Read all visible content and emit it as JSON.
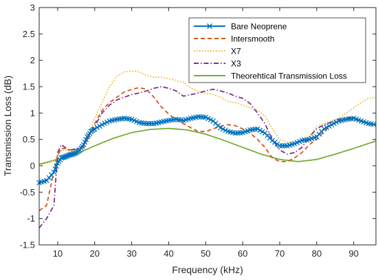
{
  "chart_data": {
    "type": "line",
    "title": "",
    "xlabel": "Frequency (kHz)",
    "ylabel": "Transmission Loss (dB)",
    "xlim": [
      5,
      96
    ],
    "ylim": [
      -1.5,
      3
    ],
    "xticks": [
      10,
      20,
      30,
      40,
      50,
      60,
      70,
      80,
      90
    ],
    "xtick_labels": [
      "10",
      "20",
      "30",
      "40",
      "50",
      "60",
      "70",
      "80",
      "90"
    ],
    "yticks": [
      -1.5,
      -1,
      -0.5,
      0,
      0.5,
      1,
      1.5,
      2,
      2.5,
      3
    ],
    "ytick_labels": [
      "-1.5",
      "-1",
      "-0.5",
      "0",
      "0.5",
      "1",
      "1.5",
      "2",
      "2.5",
      "3"
    ],
    "grid": false,
    "legend_position": "top-right",
    "series": [
      {
        "name": "Bare Neoprene",
        "color": "#0072BD",
        "style": "solid-x-markers",
        "x": [
          5,
          7,
          9,
          10,
          11,
          12,
          13,
          14,
          15,
          16,
          17,
          18,
          19,
          20,
          22,
          24,
          26,
          28,
          30,
          32,
          34,
          36,
          38,
          40,
          42,
          44,
          46,
          48,
          50,
          52,
          54,
          56,
          58,
          60,
          62,
          64,
          66,
          68,
          70,
          72,
          74,
          76,
          78,
          80,
          82,
          84,
          86,
          88,
          90,
          92,
          94,
          96
        ],
        "y": [
          -0.32,
          -0.28,
          -0.12,
          0.05,
          0.15,
          0.17,
          0.2,
          0.22,
          0.25,
          0.3,
          0.4,
          0.55,
          0.65,
          0.7,
          0.78,
          0.85,
          0.88,
          0.9,
          0.88,
          0.82,
          0.8,
          0.8,
          0.83,
          0.86,
          0.88,
          0.86,
          0.9,
          0.93,
          0.92,
          0.85,
          0.72,
          0.65,
          0.62,
          0.63,
          0.68,
          0.7,
          0.62,
          0.48,
          0.38,
          0.38,
          0.42,
          0.48,
          0.5,
          0.55,
          0.7,
          0.78,
          0.85,
          0.88,
          0.9,
          0.85,
          0.8,
          0.78
        ]
      },
      {
        "name": "Intersmooth",
        "color": "#D95319",
        "style": "dashed",
        "x": [
          5,
          7,
          9,
          10,
          11,
          12,
          13,
          15,
          17,
          18,
          20,
          22,
          24,
          26,
          28,
          30,
          32,
          34,
          36,
          38,
          40,
          42,
          44,
          46,
          48,
          50,
          52,
          54,
          56,
          58,
          60,
          62,
          64,
          66,
          68,
          70,
          72,
          74,
          76,
          78,
          80,
          82,
          84,
          86,
          88,
          90,
          92,
          94,
          96
        ],
        "y": [
          -0.85,
          -0.75,
          -0.1,
          0.2,
          0.33,
          0.33,
          0.3,
          0.3,
          0.35,
          0.5,
          0.8,
          1.05,
          1.2,
          1.3,
          1.4,
          1.45,
          1.48,
          1.45,
          1.3,
          1.12,
          0.98,
          0.88,
          0.8,
          0.72,
          0.65,
          0.65,
          0.7,
          0.75,
          0.78,
          0.76,
          0.7,
          0.62,
          0.5,
          0.35,
          0.15,
          0.08,
          0.08,
          0.15,
          0.25,
          0.4,
          0.5,
          0.65,
          0.78,
          0.85,
          0.88,
          0.88,
          0.85,
          0.8,
          0.78
        ]
      },
      {
        "name": "X7",
        "color": "#EDB120",
        "style": "dotted",
        "x": [
          5,
          7,
          9,
          10,
          11,
          12,
          13,
          15,
          17,
          18,
          20,
          22,
          24,
          26,
          28,
          30,
          32,
          34,
          36,
          38,
          40,
          42,
          44,
          46,
          48,
          50,
          52,
          54,
          56,
          58,
          60,
          62,
          64,
          66,
          68,
          70,
          72,
          74,
          76,
          78,
          80,
          82,
          84,
          86,
          88,
          90,
          92,
          94,
          96
        ],
        "y": [
          0.0,
          0.05,
          0.1,
          0.2,
          0.3,
          0.3,
          0.28,
          0.3,
          0.38,
          0.55,
          0.9,
          1.2,
          1.5,
          1.7,
          1.78,
          1.8,
          1.78,
          1.72,
          1.68,
          1.68,
          1.65,
          1.62,
          1.58,
          1.48,
          1.4,
          1.38,
          1.35,
          1.3,
          1.22,
          1.2,
          1.15,
          1.1,
          1.05,
          0.95,
          0.7,
          0.5,
          0.45,
          0.45,
          0.48,
          0.55,
          0.75,
          0.8,
          0.85,
          0.9,
          1.0,
          1.1,
          1.2,
          1.28,
          1.3
        ]
      },
      {
        "name": "X3",
        "color": "#7E2F8E",
        "style": "dash-dot",
        "x": [
          5,
          7,
          9,
          10,
          11,
          12,
          13,
          15,
          17,
          18,
          20,
          22,
          24,
          26,
          28,
          30,
          32,
          34,
          36,
          38,
          40,
          42,
          44,
          46,
          48,
          50,
          52,
          54,
          56,
          58,
          60,
          62,
          64,
          66,
          68,
          70,
          72,
          74,
          76,
          78,
          80,
          82,
          84,
          86,
          88,
          90,
          92,
          94,
          96
        ],
        "y": [
          -1.18,
          -1.0,
          -0.75,
          0.25,
          0.4,
          0.35,
          0.3,
          0.32,
          0.38,
          0.5,
          0.75,
          1.0,
          1.15,
          1.25,
          1.3,
          1.35,
          1.38,
          1.42,
          1.47,
          1.5,
          1.47,
          1.42,
          1.32,
          1.35,
          1.38,
          1.42,
          1.45,
          1.42,
          1.38,
          1.32,
          1.28,
          1.18,
          1.0,
          0.8,
          0.5,
          0.3,
          0.22,
          0.25,
          0.35,
          0.55,
          0.7,
          0.78,
          0.83,
          0.88,
          0.92,
          0.9,
          0.85,
          0.8,
          0.78
        ]
      },
      {
        "name": "Theorehtical Transmission Loss",
        "color": "#77AC30",
        "style": "solid",
        "x": [
          5,
          10,
          15,
          20,
          25,
          30,
          35,
          40,
          45,
          50,
          55,
          60,
          65,
          70,
          75,
          80,
          85,
          90,
          96
        ],
        "y": [
          0.03,
          0.12,
          0.22,
          0.38,
          0.52,
          0.63,
          0.69,
          0.71,
          0.68,
          0.6,
          0.48,
          0.35,
          0.22,
          0.12,
          0.08,
          0.12,
          0.22,
          0.33,
          0.47
        ]
      }
    ]
  }
}
